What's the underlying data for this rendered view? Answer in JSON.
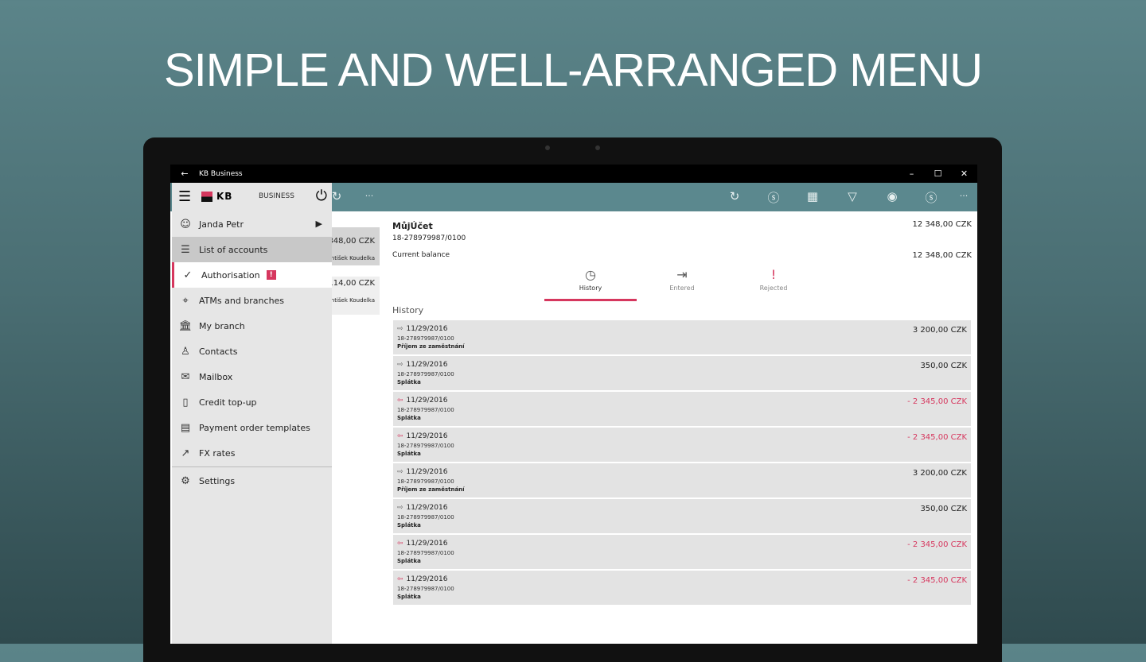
{
  "headline": "SIMPLE AND WELL-ARRANGED MENU",
  "window": {
    "title": "KB Business",
    "back": "←",
    "minimize": "–",
    "maximize": "☐",
    "close": "✕"
  },
  "toolbar": {
    "icons": [
      "refresh-icon",
      "payment-icon",
      "qr-code-icon",
      "filter-icon",
      "view-icon",
      "settings-payment-icon",
      "more-icon"
    ],
    "more": "···"
  },
  "sidebar": {
    "brand": "KB",
    "business_label": "BUSINESS",
    "user": "Janda Petr",
    "items": [
      {
        "label": "List of accounts",
        "icon": "☰"
      },
      {
        "label": "Authorisation",
        "icon": "✓",
        "badge": "!"
      },
      {
        "label": "ATMs and branches",
        "icon": "⌖"
      },
      {
        "label": "My branch",
        "icon": "🏛"
      },
      {
        "label": "Contacts",
        "icon": "♙"
      },
      {
        "label": "Mailbox",
        "icon": "✉"
      },
      {
        "label": "Credit top-up",
        "icon": "▯"
      },
      {
        "label": "Payment order templates",
        "icon": "▤"
      },
      {
        "label": "FX rates",
        "icon": "↗"
      }
    ],
    "settings": "Settings"
  },
  "accounts": [
    {
      "amount": "348,00 CZK",
      "owner": "ntišek Koudelka"
    },
    {
      "amount": "114,00 CZK",
      "owner": "ntišek Koudelka"
    }
  ],
  "detail": {
    "name": "MůjÚčet",
    "number": "18-278979987/0100",
    "amount": "12 348,00 CZK",
    "balance_label": "Current balance",
    "balance": "12 348,00 CZK",
    "tabs": [
      {
        "label": "History",
        "icon": "◷"
      },
      {
        "label": "Entered",
        "icon": "⇥"
      },
      {
        "label": "Rejected",
        "icon": "!"
      }
    ],
    "history_label": "History",
    "history": [
      {
        "date": "11/29/2016",
        "account": "18-278979987/0100",
        "purpose": "Příjem ze zaměstnání",
        "amount": "3 200,00 CZK",
        "direction": "in"
      },
      {
        "date": "11/29/2016",
        "account": "18-278979987/0100",
        "purpose": "Splátka",
        "amount": "350,00 CZK",
        "direction": "in"
      },
      {
        "date": "11/29/2016",
        "account": "18-278979987/0100",
        "purpose": "Splátka",
        "amount": "- 2 345,00 CZK",
        "direction": "out"
      },
      {
        "date": "11/29/2016",
        "account": "18-278979987/0100",
        "purpose": "Splátka",
        "amount": "- 2 345,00 CZK",
        "direction": "out"
      },
      {
        "date": "11/29/2016",
        "account": "18-278979987/0100",
        "purpose": "Příjem ze zaměstnání",
        "amount": "3 200,00 CZK",
        "direction": "in"
      },
      {
        "date": "11/29/2016",
        "account": "18-278979987/0100",
        "purpose": "Splátka",
        "amount": "350,00 CZK",
        "direction": "in"
      },
      {
        "date": "11/29/2016",
        "account": "18-278979987/0100",
        "purpose": "Splátka",
        "amount": "- 2 345,00 CZK",
        "direction": "out"
      },
      {
        "date": "11/29/2016",
        "account": "18-278979987/0100",
        "purpose": "Splátka",
        "amount": "- 2 345,00 CZK",
        "direction": "out"
      }
    ]
  },
  "colors": {
    "accent": "#d6375e",
    "toolbar": "#5b888e"
  }
}
